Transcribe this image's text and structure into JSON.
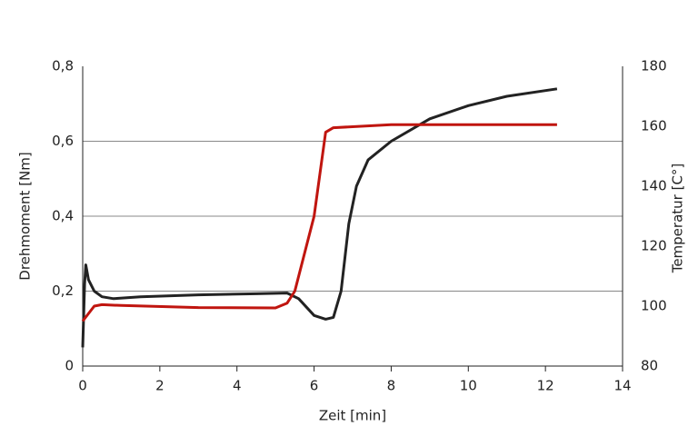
{
  "chart_data": {
    "type": "line",
    "xlabel": "Zeit [min]",
    "ylabel": "Drehmoment [Nm]",
    "y2label": "Temperatur [C°]",
    "xlim": [
      0,
      14
    ],
    "xticks": [
      0,
      2,
      4,
      6,
      8,
      10,
      12,
      14
    ],
    "ylim": [
      0,
      0.8
    ],
    "yticks": [
      0,
      {
        "value": 0.2,
        "label": "0,2"
      },
      {
        "value": 0.4,
        "label": "0,4"
      },
      {
        "value": 0.6,
        "label": "0,6"
      },
      {
        "value": 0.8,
        "label": "0,8"
      }
    ],
    "y2lim": [
      80,
      180
    ],
    "y2ticks": [
      80,
      100,
      120,
      140,
      160,
      180
    ],
    "grid": true,
    "series": [
      {
        "color": "#222222",
        "axis": "y",
        "x": [
          0,
          0.05,
          0.08,
          0.15,
          0.3,
          0.5,
          0.8,
          1.5,
          3,
          4.5,
          5.3,
          5.6,
          6.0,
          6.3,
          6.5,
          6.7,
          6.9,
          7.1,
          7.4,
          8,
          9,
          10,
          11,
          12.3
        ],
        "values": [
          0.05,
          0.22,
          0.27,
          0.23,
          0.2,
          0.185,
          0.18,
          0.185,
          0.19,
          0.193,
          0.195,
          0.18,
          0.135,
          0.125,
          0.13,
          0.2,
          0.38,
          0.48,
          0.55,
          0.6,
          0.66,
          0.695,
          0.72,
          0.74
        ]
      },
      {
        "color": "#c0150f",
        "axis": "y2",
        "x": [
          0,
          0.3,
          0.5,
          1,
          3,
          5,
          5.3,
          5.5,
          6,
          6.3,
          6.5,
          8,
          12.3
        ],
        "values": [
          95,
          100,
          100.5,
          100.2,
          99.5,
          99.4,
          101,
          105,
          130,
          158,
          159.5,
          160.5,
          160.5
        ]
      }
    ]
  }
}
